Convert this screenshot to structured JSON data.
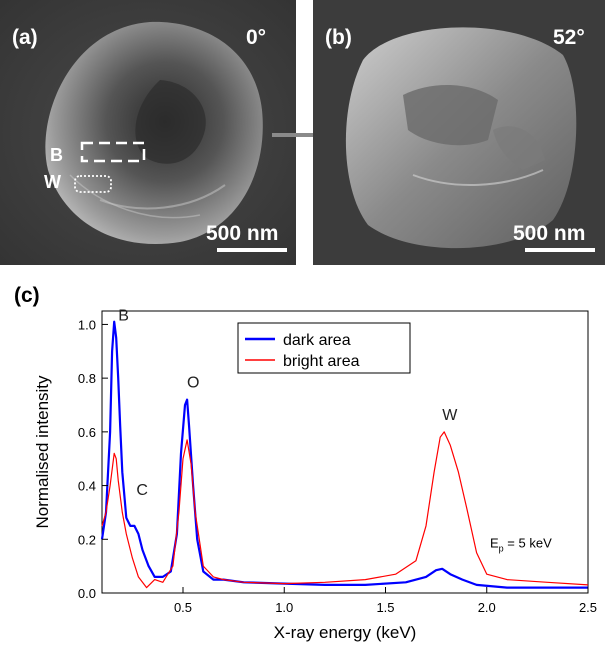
{
  "panel_a": {
    "label": "(a)",
    "angle": "0°",
    "scalebar": "500 nm",
    "box_b_label": "B",
    "box_w_label": "W"
  },
  "panel_b": {
    "label": "(b)",
    "angle": "52°",
    "scalebar": "500 nm"
  },
  "panel_c": {
    "label": "(c)"
  },
  "chart_data": {
    "type": "line",
    "xlabel": "X-ray energy (keV)",
    "ylabel": "Normalised intensity",
    "xlim": [
      0.1,
      2.5
    ],
    "ylim": [
      0.0,
      1.05
    ],
    "xticks": [
      "0.5",
      "1.0",
      "1.5",
      "2.0",
      "2.5"
    ],
    "yticks": [
      "0.0",
      "0.2",
      "0.4",
      "0.6",
      "0.8",
      "1.0"
    ],
    "legend_position": "top-center",
    "annotations": [
      {
        "text": "B",
        "x": 0.18,
        "y": 1.0
      },
      {
        "text": "C",
        "x": 0.27,
        "y": 0.35
      },
      {
        "text": "O",
        "x": 0.52,
        "y": 0.75
      },
      {
        "text": "W",
        "x": 1.78,
        "y": 0.63
      }
    ],
    "beam_energy": {
      "symbol": "E",
      "subscript": "p",
      "value": "= 5 keV"
    },
    "series": [
      {
        "name": "dark area",
        "color": "#0000ff",
        "x": [
          0.1,
          0.12,
          0.14,
          0.15,
          0.16,
          0.17,
          0.18,
          0.19,
          0.2,
          0.22,
          0.24,
          0.26,
          0.28,
          0.3,
          0.33,
          0.36,
          0.4,
          0.44,
          0.47,
          0.49,
          0.51,
          0.52,
          0.53,
          0.55,
          0.57,
          0.6,
          0.65,
          0.7,
          0.8,
          1.0,
          1.2,
          1.4,
          1.6,
          1.7,
          1.75,
          1.78,
          1.82,
          1.88,
          1.95,
          2.1,
          2.3,
          2.5
        ],
        "y": [
          0.2,
          0.3,
          0.6,
          0.9,
          1.01,
          0.95,
          0.8,
          0.62,
          0.45,
          0.28,
          0.25,
          0.25,
          0.22,
          0.16,
          0.1,
          0.06,
          0.06,
          0.08,
          0.22,
          0.52,
          0.7,
          0.72,
          0.62,
          0.4,
          0.2,
          0.08,
          0.05,
          0.05,
          0.04,
          0.035,
          0.03,
          0.03,
          0.04,
          0.06,
          0.085,
          0.09,
          0.07,
          0.05,
          0.03,
          0.02,
          0.02,
          0.02
        ]
      },
      {
        "name": "bright area",
        "color": "#ff0000",
        "x": [
          0.1,
          0.12,
          0.14,
          0.16,
          0.17,
          0.18,
          0.2,
          0.22,
          0.25,
          0.28,
          0.32,
          0.36,
          0.4,
          0.45,
          0.48,
          0.5,
          0.52,
          0.54,
          0.56,
          0.6,
          0.65,
          0.7,
          0.8,
          1.0,
          1.2,
          1.4,
          1.55,
          1.65,
          1.7,
          1.74,
          1.77,
          1.79,
          1.82,
          1.86,
          1.9,
          1.95,
          2.0,
          2.1,
          2.3,
          2.5
        ],
        "y": [
          0.25,
          0.3,
          0.4,
          0.52,
          0.5,
          0.42,
          0.3,
          0.22,
          0.13,
          0.06,
          0.02,
          0.05,
          0.04,
          0.1,
          0.3,
          0.5,
          0.57,
          0.48,
          0.3,
          0.1,
          0.06,
          0.05,
          0.04,
          0.035,
          0.04,
          0.05,
          0.07,
          0.12,
          0.25,
          0.45,
          0.58,
          0.6,
          0.55,
          0.45,
          0.32,
          0.15,
          0.07,
          0.05,
          0.04,
          0.03
        ]
      }
    ]
  }
}
